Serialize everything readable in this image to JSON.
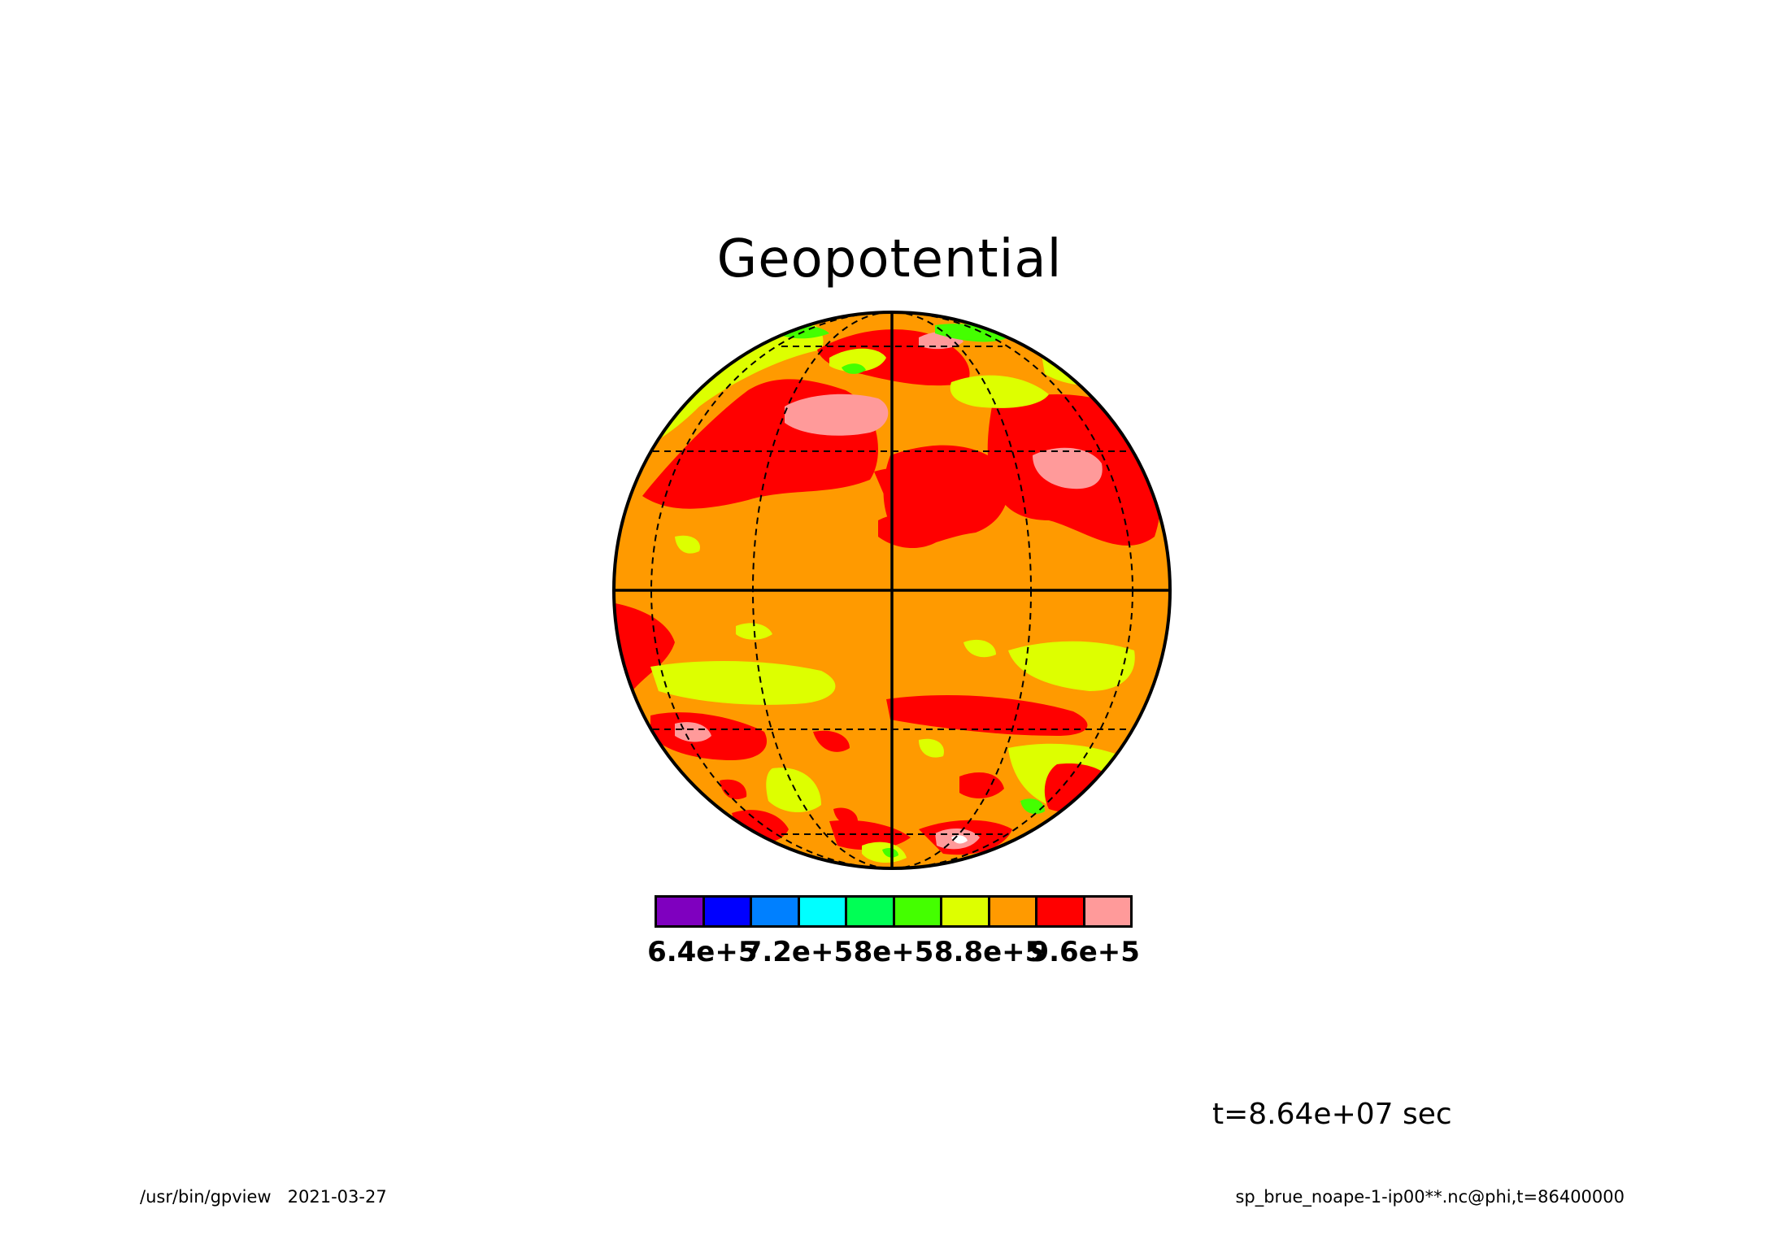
{
  "title": "Geopotential",
  "time_label": "t=8.64e+07 sec",
  "footer": {
    "program": "/usr/bin/gpview",
    "date": "2021-03-27",
    "source": "sp_brue_noape-1-ip00**.nc@phi,t=86400000"
  },
  "colors": {
    "levels": [
      "#7f00bf",
      "#0000ff",
      "#0080ff",
      "#00ffff",
      "#00ff55",
      "#44ff00",
      "#ddff00",
      "#ff9a00",
      "#ff0000",
      "#ff9a9a"
    ],
    "background_level": "#ff9a00",
    "white": "#ffffff"
  },
  "chart_data": {
    "type": "heatmap",
    "title": "Geopotential",
    "projection": "orthographic",
    "graticule": "dashed",
    "colorbar": {
      "tick_labels": [
        "6.4e+5",
        "7.2e+5",
        "8e+5",
        "8.8e+5",
        "9.6e+5"
      ]
    }
  }
}
